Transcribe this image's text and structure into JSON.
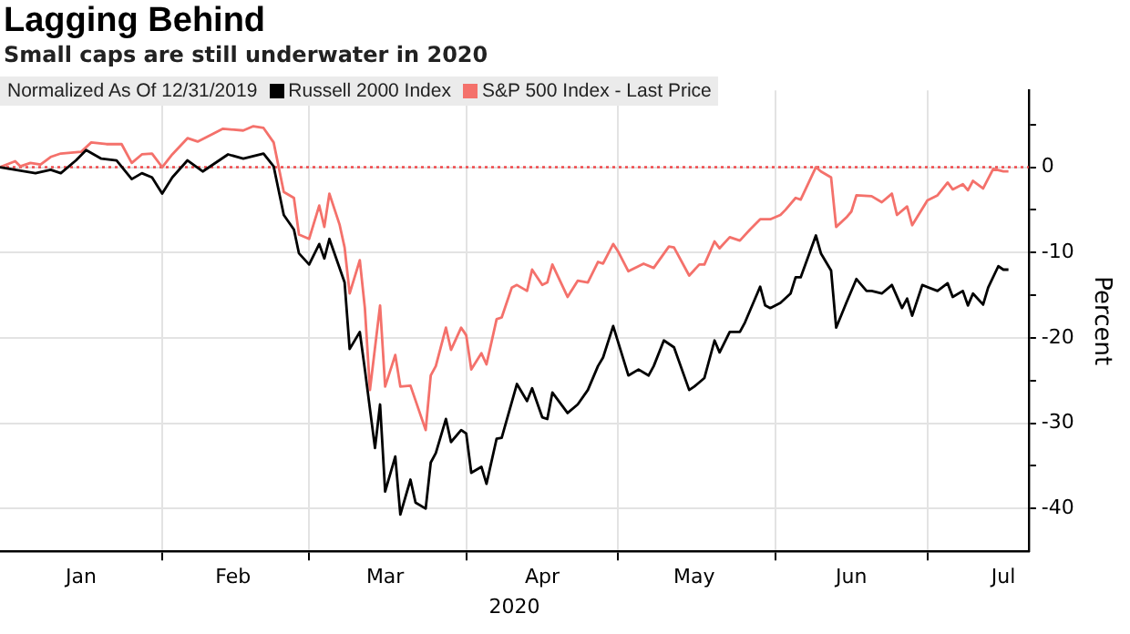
{
  "chart_data": {
    "type": "line",
    "title": "Lagging Behind",
    "subtitle": "Small caps are still underwater in 2020",
    "xlabel": "2020",
    "ylabel": "Percent",
    "legend_title": "Normalized As Of 12/31/2019",
    "legend": "top left",
    "grid": true,
    "marker": "none",
    "xlim": [
      "2019-12-31",
      "2020-07-21"
    ],
    "xticks": [
      {
        "value": "2020-01-16",
        "label": "Jan"
      },
      {
        "value": "2020-02-01",
        "label": null
      },
      {
        "value": "2020-02-15",
        "label": "Feb"
      },
      {
        "value": "2020-03-01",
        "label": null
      },
      {
        "value": "2020-03-16",
        "label": "Mar"
      },
      {
        "value": "2020-04-01",
        "label": null
      },
      {
        "value": "2020-04-16",
        "label": "Apr"
      },
      {
        "value": "2020-05-01",
        "label": null
      },
      {
        "value": "2020-05-16",
        "label": "May"
      },
      {
        "value": "2020-06-01",
        "label": null
      },
      {
        "value": "2020-06-16",
        "label": "Jun"
      },
      {
        "value": "2020-07-01",
        "label": null
      },
      {
        "value": "2020-07-16",
        "label": "Jul"
      }
    ],
    "ylim": [
      -45,
      9
    ],
    "yticks": [
      {
        "value": 5,
        "label": null
      },
      0,
      {
        "value": -5,
        "label": null
      },
      -10,
      {
        "value": -15,
        "label": null
      },
      -20,
      {
        "value": -25,
        "label": null
      },
      -30,
      {
        "value": -35,
        "label": null
      },
      -40
    ],
    "ref_lines": [
      {
        "axis": "y",
        "value": 0,
        "color": "#f0484b",
        "line_style": "dotted"
      }
    ],
    "series": [
      {
        "name": "Russell 2000 Index",
        "type": "line",
        "color": "#000000",
        "x": [
          "2019-12-31",
          "2020-01-07",
          "2020-01-10",
          "2020-01-12",
          "2020-01-15",
          "2020-01-17",
          "2020-01-20",
          "2020-01-23",
          "2020-01-26",
          "2020-01-28",
          "2020-01-30",
          "2020-02-01",
          "2020-02-03",
          "2020-02-06",
          "2020-02-09",
          "2020-02-14",
          "2020-02-17",
          "2020-02-21",
          "2020-02-23",
          "2020-02-25",
          "2020-02-27",
          "2020-02-28",
          "2020-03-01",
          "2020-03-03",
          "2020-03-04",
          "2020-03-05",
          "2020-03-08",
          "2020-03-09",
          "2020-03-11",
          "2020-03-12",
          "2020-03-14",
          "2020-03-15",
          "2020-03-16",
          "2020-03-18",
          "2020-03-19",
          "2020-03-21",
          "2020-03-22",
          "2020-03-24",
          "2020-03-25",
          "2020-03-26",
          "2020-03-28",
          "2020-03-29",
          "2020-03-31",
          "2020-04-01",
          "2020-04-02",
          "2020-04-04",
          "2020-04-05",
          "2020-04-07",
          "2020-04-08",
          "2020-04-11",
          "2020-04-13",
          "2020-04-14",
          "2020-04-16",
          "2020-04-17",
          "2020-04-18",
          "2020-04-21",
          "2020-04-23",
          "2020-04-25",
          "2020-04-27",
          "2020-04-28",
          "2020-04-30",
          "2020-05-03",
          "2020-05-05",
          "2020-05-07",
          "2020-05-08",
          "2020-05-10",
          "2020-05-12",
          "2020-05-15",
          "2020-05-16",
          "2020-05-18",
          "2020-05-20",
          "2020-05-21",
          "2020-05-23",
          "2020-05-25",
          "2020-05-26",
          "2020-05-29",
          "2020-05-30",
          "2020-05-31",
          "2020-06-02",
          "2020-06-04",
          "2020-06-05",
          "2020-06-06",
          "2020-06-09",
          "2020-06-10",
          "2020-06-12",
          "2020-06-13",
          "2020-06-15",
          "2020-06-17",
          "2020-06-19",
          "2020-06-20",
          "2020-06-22",
          "2020-06-24",
          "2020-06-26",
          "2020-06-27",
          "2020-06-28",
          "2020-06-30",
          "2020-07-03",
          "2020-07-05",
          "2020-07-06",
          "2020-07-08",
          "2020-07-09",
          "2020-07-10",
          "2020-07-12",
          "2020-07-13",
          "2020-07-15",
          "2020-07-16",
          "2020-07-17"
        ],
        "values": [
          0,
          -0.7,
          -0.3,
          -0.7,
          0.8,
          2.0,
          1.0,
          0.8,
          -1.4,
          -0.7,
          -1.2,
          -3.1,
          -1.2,
          0.8,
          -0.5,
          1.5,
          1.0,
          1.6,
          0.1,
          -5.6,
          -7.3,
          -10.1,
          -11.4,
          -9.0,
          -10.7,
          -8.4,
          -13.5,
          -21.3,
          -19.3,
          -23.7,
          -32.9,
          -27.8,
          -38.0,
          -33.9,
          -40.7,
          -36.6,
          -39.3,
          -40.0,
          -34.6,
          -33.5,
          -29.5,
          -32.2,
          -30.8,
          -31.2,
          -35.8,
          -35.1,
          -37.1,
          -31.8,
          -31.7,
          -25.4,
          -27.4,
          -25.9,
          -29.3,
          -29.5,
          -26.4,
          -28.8,
          -27.8,
          -26.1,
          -23.3,
          -22.3,
          -18.6,
          -24.4,
          -23.7,
          -24.4,
          -23.3,
          -20.3,
          -21.1,
          -26.1,
          -25.7,
          -24.7,
          -20.3,
          -21.7,
          -19.3,
          -19.3,
          -18.2,
          -14.0,
          -16.2,
          -16.5,
          -15.9,
          -14.8,
          -12.9,
          -12.9,
          -8.0,
          -10.1,
          -12.1,
          -18.8,
          -15.9,
          -13.1,
          -14.5,
          -14.5,
          -14.8,
          -13.8,
          -16.5,
          -15.4,
          -17.4,
          -13.8,
          -14.5,
          -13.6,
          -15.2,
          -14.5,
          -16.2,
          -14.8,
          -16.1,
          -14.1,
          -11.6,
          -12.0,
          -12.0
        ]
      },
      {
        "name": "S&P 500 Index - Last Price",
        "type": "line",
        "color": "#f4716b",
        "x": [
          "2019-12-31",
          "2020-01-03",
          "2020-01-04",
          "2020-01-06",
          "2020-01-08",
          "2020-01-10",
          "2020-01-12",
          "2020-01-16",
          "2020-01-18",
          "2020-01-21",
          "2020-01-24",
          "2020-01-26",
          "2020-01-28",
          "2020-01-30",
          "2020-02-01",
          "2020-02-03",
          "2020-02-06",
          "2020-02-08",
          "2020-02-11",
          "2020-02-13",
          "2020-02-17",
          "2020-02-19",
          "2020-02-21",
          "2020-02-23",
          "2020-02-25",
          "2020-02-27",
          "2020-02-28",
          "2020-03-01",
          "2020-03-03",
          "2020-03-04",
          "2020-03-05",
          "2020-03-07",
          "2020-03-08",
          "2020-03-09",
          "2020-03-11",
          "2020-03-12",
          "2020-03-13",
          "2020-03-15",
          "2020-03-16",
          "2020-03-18",
          "2020-03-19",
          "2020-03-21",
          "2020-03-24",
          "2020-03-25",
          "2020-03-26",
          "2020-03-28",
          "2020-03-29",
          "2020-03-31",
          "2020-04-01",
          "2020-04-02",
          "2020-04-04",
          "2020-04-05",
          "2020-04-07",
          "2020-04-08",
          "2020-04-10",
          "2020-04-11",
          "2020-04-13",
          "2020-04-14",
          "2020-04-16",
          "2020-04-17",
          "2020-04-18",
          "2020-04-21",
          "2020-04-23",
          "2020-04-25",
          "2020-04-27",
          "2020-04-28",
          "2020-04-30",
          "2020-05-01",
          "2020-05-03",
          "2020-05-06",
          "2020-05-08",
          "2020-05-11",
          "2020-05-12",
          "2020-05-15",
          "2020-05-17",
          "2020-05-18",
          "2020-05-20",
          "2020-05-21",
          "2020-05-23",
          "2020-05-25",
          "2020-05-27",
          "2020-05-29",
          "2020-05-31",
          "2020-06-02",
          "2020-06-03",
          "2020-06-05",
          "2020-06-06",
          "2020-06-09",
          "2020-06-10",
          "2020-06-12",
          "2020-06-13",
          "2020-06-15",
          "2020-06-16",
          "2020-06-17",
          "2020-06-20",
          "2020-06-22",
          "2020-06-24",
          "2020-06-25",
          "2020-06-27",
          "2020-06-28",
          "2020-07-01",
          "2020-07-03",
          "2020-07-05",
          "2020-07-06",
          "2020-07-08",
          "2020-07-09",
          "2020-07-10",
          "2020-07-12",
          "2020-07-14",
          "2020-07-16",
          "2020-07-17"
        ],
        "values": [
          0,
          0.7,
          0.1,
          0.5,
          0.3,
          1.2,
          1.6,
          1.8,
          2.9,
          2.7,
          2.7,
          0.5,
          1.5,
          1.6,
          0,
          1.5,
          3.4,
          3.0,
          3.9,
          4.5,
          4.3,
          4.8,
          4.6,
          2.9,
          -2.9,
          -3.6,
          -7.9,
          -8.4,
          -4.5,
          -7.0,
          -3.1,
          -6.7,
          -9.4,
          -14.8,
          -10.9,
          -16.5,
          -26.1,
          -16.2,
          -25.7,
          -22.0,
          -25.7,
          -25.6,
          -30.8,
          -24.4,
          -23.3,
          -18.8,
          -21.4,
          -18.8,
          -19.7,
          -23.7,
          -21.8,
          -23.1,
          -17.8,
          -17.6,
          -14.1,
          -13.8,
          -14.5,
          -12.0,
          -13.8,
          -13.5,
          -11.4,
          -15.2,
          -13.3,
          -13.5,
          -11.1,
          -11.3,
          -9.0,
          -9.9,
          -12.2,
          -11.3,
          -11.8,
          -9.3,
          -9.4,
          -12.7,
          -11.4,
          -11.4,
          -8.7,
          -9.5,
          -8.2,
          -8.6,
          -7.3,
          -6.1,
          -6.1,
          -5.6,
          -5.0,
          -3.6,
          -3.8,
          0,
          -0.5,
          -1.2,
          -7.0,
          -5.9,
          -5.2,
          -3.3,
          -3.4,
          -4.1,
          -3.1,
          -5.6,
          -4.6,
          -6.8,
          -3.9,
          -3.3,
          -1.8,
          -2.6,
          -2.0,
          -2.7,
          -1.6,
          -2.5,
          -0.2,
          -0.5,
          -0.5
        ]
      }
    ]
  }
}
